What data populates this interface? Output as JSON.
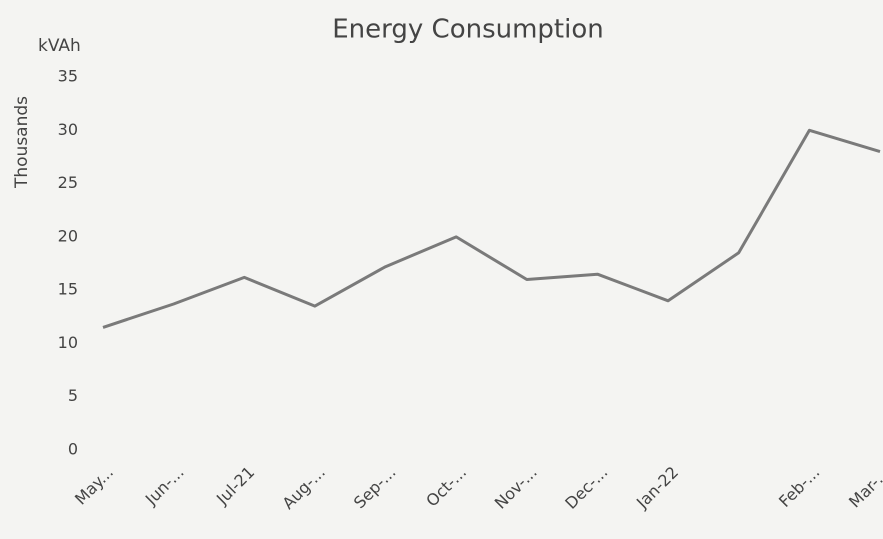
{
  "chart_data": {
    "type": "line",
    "title": "Energy Consumption",
    "y_unit_label": "kVAh",
    "y_axis_label": "Thousands",
    "categories": [
      "May...",
      "Jun-...",
      "Jul-21",
      "Aug-...",
      "Sep-...",
      "Oct-...",
      "Nov-...",
      "Dec-...",
      "Jan-22",
      null,
      "Feb-...",
      "Mar-..."
    ],
    "series": [
      {
        "color": "#7a7a7a",
        "values": [
          11.5,
          13.7,
          16.2,
          13.5,
          17.2,
          20,
          16,
          16.5,
          14,
          18.5,
          30,
          28
        ]
      }
    ],
    "ylim": [
      0,
      35
    ],
    "yticks": [
      0,
      5,
      10,
      15,
      20,
      25,
      30,
      35
    ],
    "grid": false
  }
}
